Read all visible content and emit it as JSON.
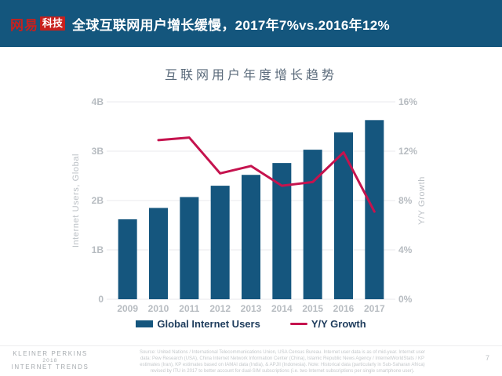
{
  "header": {
    "logo": {
      "brand": "网易",
      "badge": "科技"
    },
    "title": "全球互联网用户增长缓慢，2017年7%vs.2016年12%"
  },
  "chart": {
    "title": "互联网用户年度增长趋势"
  },
  "chart_data": {
    "type": "bar",
    "title": "互联网用户年度增长趋势",
    "categories": [
      "2009",
      "2010",
      "2011",
      "2012",
      "2013",
      "2014",
      "2015",
      "2016",
      "2017"
    ],
    "series": [
      {
        "name": "Global Internet Users",
        "type": "bar",
        "axis": "left",
        "unit": "billions",
        "values": [
          1.62,
          1.85,
          2.07,
          2.3,
          2.52,
          2.76,
          3.03,
          3.38,
          3.63
        ]
      },
      {
        "name": "Y/Y Growth",
        "type": "line",
        "axis": "right",
        "unit": "percent",
        "values": [
          null,
          12.9,
          13.1,
          10.2,
          10.8,
          9.2,
          9.5,
          11.9,
          7.1
        ]
      }
    ],
    "left_axis": {
      "title": "Internet Users, Global",
      "ticks": [
        "0",
        "1B",
        "2B",
        "3B",
        "4B"
      ],
      "range": [
        0,
        4
      ]
    },
    "right_axis": {
      "title": "Y/Y Growth",
      "ticks": [
        "0%",
        "4%",
        "8%",
        "12%",
        "16%"
      ],
      "range": [
        0,
        16
      ]
    },
    "grid": true,
    "legend_position": "bottom"
  },
  "legend": {
    "items": [
      {
        "label": "Global Internet Users",
        "swatch": "bar"
      },
      {
        "label": "Y/Y Growth",
        "swatch": "line"
      }
    ]
  },
  "footer": {
    "brand_lines": [
      "KLEINER PERKINS",
      "2018",
      "INTERNET TRENDS"
    ],
    "source_lines": [
      "Source: United Nations / International Telecommunications Union, USA Census Bureau. Internet user data is as of mid-year. Internet user",
      "data: Pew Research (USA), China Internet Network Information Center (China), Islamic Republic News Agency / InternetWorldStats / KP",
      "estimates (Iran), KP estimates based on IAMAI data (India), & APJII (Indonesia). Note: Historical data (particularly in Sub-Saharan Africa)",
      "revised by ITU in 2017 to better account for dual-SIM subscriptions (i.e. two Internet subscriptions per single smartphone user)."
    ],
    "page_number": "7"
  },
  "colors": {
    "header_bg": "#14567D",
    "bar": "#15567E",
    "line": "#C5134E",
    "grid": "#E8EAEC",
    "tick_label": "#B7BCC1",
    "legend_text": "#1E3C5C",
    "logo_red": "#C8201D",
    "chart_title": "#5B6B7B"
  }
}
